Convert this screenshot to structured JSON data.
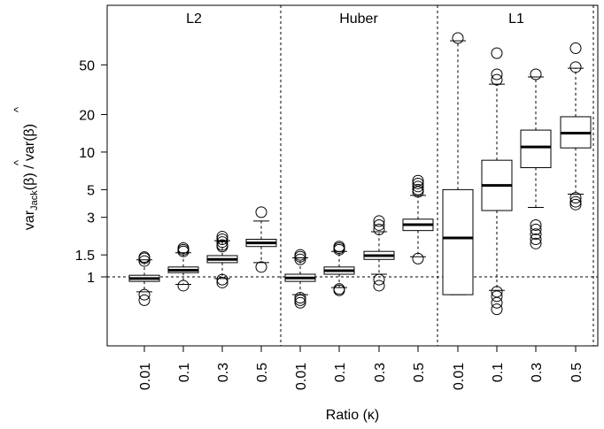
{
  "chart_data": {
    "type": "box",
    "ylabel_parts": {
      "var": "var",
      "sub": "Jack",
      "hat": "^",
      "beta_open": "(β)",
      "sep": " / var",
      "beta_close": "(β)"
    },
    "xlabel": "Ratio (κ)",
    "y_scale": "log",
    "ylim": [
      0.28,
      150
    ],
    "yticks": [
      {
        "v": 1,
        "label": "1"
      },
      {
        "v": 1.5,
        "label": "1.5"
      },
      {
        "v": 3,
        "label": "3"
      },
      {
        "v": 5,
        "label": "5"
      },
      {
        "v": 10,
        "label": "10"
      },
      {
        "v": 20,
        "label": "20"
      },
      {
        "v": 50,
        "label": "50"
      }
    ],
    "reference_line_y": 1,
    "panels": [
      {
        "label": "L2",
        "groups": [
          {
            "x": "0.01",
            "whisker_low": 0.76,
            "q1": 0.92,
            "median": 0.97,
            "q3": 1.03,
            "whisker_high": 1.37,
            "outliers": [
              0.72,
              0.65,
              1.34,
              1.41,
              1.44
            ]
          },
          {
            "x": "0.1",
            "whisker_low": 0.87,
            "q1": 1.08,
            "median": 1.13,
            "q3": 1.2,
            "whisker_high": 1.56,
            "outliers": [
              0.85,
              1.6,
              1.65,
              1.7
            ]
          },
          {
            "x": "0.3",
            "whisker_low": 0.97,
            "q1": 1.3,
            "median": 1.38,
            "q3": 1.48,
            "whisker_high": 1.95,
            "outliers": [
              0.95,
              0.9,
              1.75,
              1.8,
              1.9,
              2.0,
              2.1
            ]
          },
          {
            "x": "0.5",
            "whisker_low": 1.3,
            "q1": 1.75,
            "median": 1.87,
            "q3": 2.0,
            "whisker_high": 2.8,
            "outliers": [
              1.2,
              3.3
            ]
          }
        ]
      },
      {
        "label": "Huber",
        "groups": [
          {
            "x": "0.01",
            "whisker_low": 0.72,
            "q1": 0.92,
            "median": 0.98,
            "q3": 1.05,
            "whisker_high": 1.42,
            "outliers": [
              0.68,
              0.65,
              0.62,
              1.38,
              1.45,
              1.5
            ]
          },
          {
            "x": "0.1",
            "whisker_low": 0.82,
            "q1": 1.05,
            "median": 1.12,
            "q3": 1.2,
            "whisker_high": 1.6,
            "outliers": [
              0.8,
              0.78,
              1.65,
              1.7,
              1.75
            ]
          },
          {
            "x": "0.3",
            "whisker_low": 1.05,
            "q1": 1.38,
            "median": 1.48,
            "q3": 1.6,
            "whisker_high": 2.3,
            "outliers": [
              0.95,
              0.85,
              2.4,
              2.6,
              2.8
            ]
          },
          {
            "x": "0.5",
            "whisker_low": 1.45,
            "q1": 2.35,
            "median": 2.62,
            "q3": 2.9,
            "whisker_high": 4.5,
            "outliers": [
              1.4,
              4.8,
              5.0,
              5.3,
              5.6,
              5.9
            ]
          }
        ]
      },
      {
        "label": "L1",
        "groups": [
          {
            "x": "0.01",
            "whisker_low": 0.72,
            "q1": 0.72,
            "median": 2.05,
            "q3": 5.0,
            "whisker_high": 78,
            "outliers": [
              82
            ]
          },
          {
            "x": "0.1",
            "whisker_low": 0.78,
            "q1": 3.4,
            "median": 5.4,
            "q3": 8.6,
            "whisker_high": 35,
            "outliers": [
              0.76,
              0.7,
              0.62,
              0.55,
              38,
              42,
              62
            ]
          },
          {
            "x": "0.3",
            "whisker_low": 3.6,
            "q1": 7.5,
            "median": 11.0,
            "q3": 15.0,
            "whisker_high": 40,
            "outliers": [
              2.6,
              2.4,
              2.2,
              2.0,
              1.85,
              42
            ]
          },
          {
            "x": "0.5",
            "whisker_low": 4.6,
            "q1": 10.8,
            "median": 14.2,
            "q3": 19.2,
            "whisker_high": 47,
            "outliers": [
              4.3,
              4.0,
              3.8,
              48,
              68
            ]
          }
        ]
      }
    ]
  }
}
